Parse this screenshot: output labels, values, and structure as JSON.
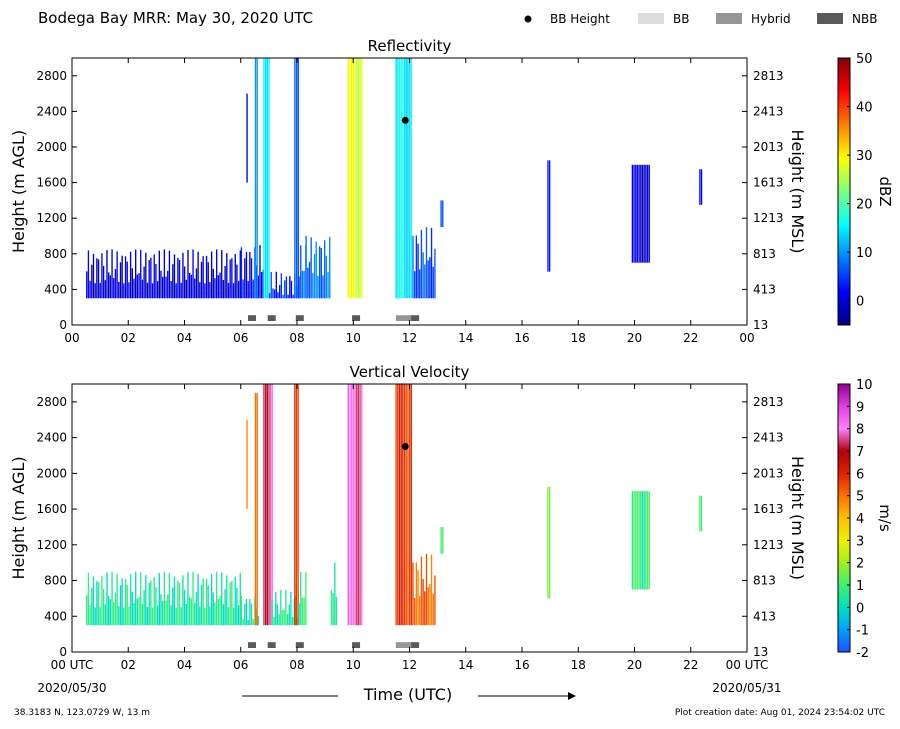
{
  "header": {
    "title": "Bodega Bay MRR:  May 30, 2020 UTC",
    "legend": [
      {
        "label": "BB Height",
        "marker": "dot",
        "color": "#000000"
      },
      {
        "label": "BB",
        "marker": "box",
        "color": "#dcdcdc"
      },
      {
        "label": "Hybrid",
        "marker": "box",
        "color": "#969696"
      },
      {
        "label": "NBB",
        "marker": "box",
        "color": "#5a5a5a"
      }
    ]
  },
  "footer": {
    "location": "38.3183 N, 123.0729 W, 13 m",
    "created": "Plot creation date: Aug 01, 2024 23:54:02 UTC",
    "xlabel": "Time (UTC)",
    "start_date": "2020/05/30",
    "end_date": "2020/05/31"
  },
  "chart_data": [
    {
      "type": "heatmap",
      "title": "Reflectivity",
      "ylabel": "Height (m AGL)",
      "ylabel_right": "Height (m MSL)",
      "colorbar_label": "dBZ",
      "x_tick_labels": [
        "00",
        "02",
        "04",
        "06",
        "08",
        "10",
        "12",
        "14",
        "16",
        "18",
        "20",
        "22",
        "00"
      ],
      "xlim": [
        0,
        24
      ],
      "ylim": [
        0,
        3000
      ],
      "y_ticks": [
        0,
        400,
        800,
        1200,
        1600,
        2000,
        2400,
        2800
      ],
      "y_right_tick_labels": [
        "13",
        "413",
        "813",
        "1213",
        "1613",
        "2013",
        "2413",
        "2813"
      ],
      "colorbar_ticks": [
        0,
        10,
        20,
        30,
        40,
        50
      ],
      "colorbar_range": [
        -5,
        50
      ],
      "colorbar_colors": [
        "#00007f",
        "#0000ff",
        "#007fff",
        "#00ffff",
        "#7fff7f",
        "#ffff00",
        "#ff7f00",
        "#ff0000",
        "#7f0000"
      ],
      "bb_height_points": [
        {
          "time": 11.85,
          "height": 2300
        }
      ],
      "bb_type_markers": [
        {
          "time": 6.4,
          "type": "NBB"
        },
        {
          "time": 7.1,
          "type": "NBB"
        },
        {
          "time": 8.1,
          "type": "NBB"
        },
        {
          "time": 10.1,
          "type": "NBB"
        },
        {
          "time": 11.8,
          "type": "Hybrid"
        },
        {
          "time": 12.2,
          "type": "NBB"
        }
      ],
      "echo_segments": [
        {
          "start": 0.5,
          "end": 6.0,
          "top": 850,
          "value": 0
        },
        {
          "start": 6.0,
          "end": 6.8,
          "top": 900,
          "value": 2
        },
        {
          "start": 6.2,
          "end": 6.25,
          "bottom": 1600,
          "top": 2600,
          "value": 1
        },
        {
          "start": 6.5,
          "end": 6.6,
          "top": 3000,
          "value": 12
        },
        {
          "start": 6.8,
          "end": 7.0,
          "top": 3000,
          "value": 16
        },
        {
          "start": 7.0,
          "end": 8.0,
          "top": 600,
          "value": 4
        },
        {
          "start": 7.9,
          "end": 8.05,
          "top": 3000,
          "value": 6
        },
        {
          "start": 8.05,
          "end": 8.3,
          "top": 900,
          "value": 7
        },
        {
          "start": 8.3,
          "end": 9.2,
          "top": 1000,
          "value": 8
        },
        {
          "start": 9.8,
          "end": 10.3,
          "top": 3000,
          "value": 28
        },
        {
          "start": 11.5,
          "end": 12.1,
          "top": 3000,
          "value": 15
        },
        {
          "start": 12.1,
          "end": 12.9,
          "top": 1100,
          "value": 6
        },
        {
          "start": 13.1,
          "end": 13.2,
          "bottom": 1100,
          "top": 1400,
          "value": 8
        },
        {
          "start": 16.9,
          "end": 17.0,
          "bottom": 600,
          "top": 1850,
          "value": 1
        },
        {
          "start": 19.9,
          "end": 20.5,
          "bottom": 700,
          "top": 1800,
          "value": 0
        },
        {
          "start": 22.3,
          "end": 22.4,
          "bottom": 1350,
          "top": 1750,
          "value": 1
        }
      ]
    },
    {
      "type": "heatmap",
      "title": "Vertical Velocity",
      "ylabel": "Height (m AGL)",
      "ylabel_right": "Height (m MSL)",
      "colorbar_label": "m/s",
      "x_tick_labels": [
        "00 UTC",
        "02",
        "04",
        "06",
        "08",
        "10",
        "12",
        "14",
        "16",
        "18",
        "20",
        "22",
        "00 UTC"
      ],
      "xlim": [
        0,
        24
      ],
      "ylim": [
        0,
        3000
      ],
      "y_ticks": [
        0,
        400,
        800,
        1200,
        1600,
        2000,
        2400,
        2800
      ],
      "y_right_tick_labels": [
        "13",
        "413",
        "813",
        "1213",
        "1613",
        "2013",
        "2413",
        "2813"
      ],
      "colorbar_ticks": [
        -2,
        -1,
        0,
        1,
        2,
        3,
        4,
        5,
        6,
        7,
        8,
        9,
        10
      ],
      "colorbar_range": [
        -2,
        10
      ],
      "colorbar_colors": [
        "#1e50ff",
        "#00a0ff",
        "#00e0c0",
        "#40f070",
        "#a0f020",
        "#f0f000",
        "#ffc000",
        "#ff7000",
        "#e02000",
        "#b00010",
        "#ff80ff",
        "#e040e0",
        "#900090"
      ],
      "bb_height_points": [
        {
          "time": 11.85,
          "height": 2300
        }
      ],
      "bb_type_markers": [
        {
          "time": 6.4,
          "type": "NBB"
        },
        {
          "time": 7.1,
          "type": "NBB"
        },
        {
          "time": 8.1,
          "type": "NBB"
        },
        {
          "time": 10.1,
          "type": "NBB"
        },
        {
          "time": 11.8,
          "type": "Hybrid"
        },
        {
          "time": 12.2,
          "type": "NBB"
        }
      ],
      "echo_segments": [
        {
          "start": 0.5,
          "end": 6.0,
          "top": 900,
          "value": 0.4
        },
        {
          "start": 6.0,
          "end": 6.6,
          "top": 650,
          "value": 0.3
        },
        {
          "start": 6.2,
          "end": 6.25,
          "bottom": 1600,
          "top": 2600,
          "value": 5
        },
        {
          "start": 6.5,
          "end": 6.6,
          "top": 2900,
          "value": 5.5
        },
        {
          "start": 6.8,
          "end": 7.1,
          "top": 3000,
          "value": 7.5
        },
        {
          "start": 7.1,
          "end": 8.0,
          "top": 700,
          "value": 0.5
        },
        {
          "start": 7.9,
          "end": 8.05,
          "top": 3000,
          "value": 5.5
        },
        {
          "start": 8.05,
          "end": 8.3,
          "top": 900,
          "value": 0.6
        },
        {
          "start": 9.2,
          "end": 9.4,
          "top": 1000,
          "value": 0.8
        },
        {
          "start": 9.8,
          "end": 10.3,
          "top": 3000,
          "value": 7.8
        },
        {
          "start": 11.5,
          "end": 12.1,
          "top": 3000,
          "value": 5.8
        },
        {
          "start": 12.1,
          "end": 12.9,
          "top": 1100,
          "value": 5.2
        },
        {
          "start": 13.1,
          "end": 13.2,
          "bottom": 1100,
          "top": 1400,
          "value": 1.5
        },
        {
          "start": 16.9,
          "end": 17.0,
          "bottom": 600,
          "top": 1850,
          "value": 1.2
        },
        {
          "start": 19.9,
          "end": 20.5,
          "bottom": 700,
          "top": 1800,
          "value": 0.8
        },
        {
          "start": 22.3,
          "end": 22.4,
          "bottom": 1350,
          "top": 1750,
          "value": 0.7
        }
      ]
    }
  ]
}
